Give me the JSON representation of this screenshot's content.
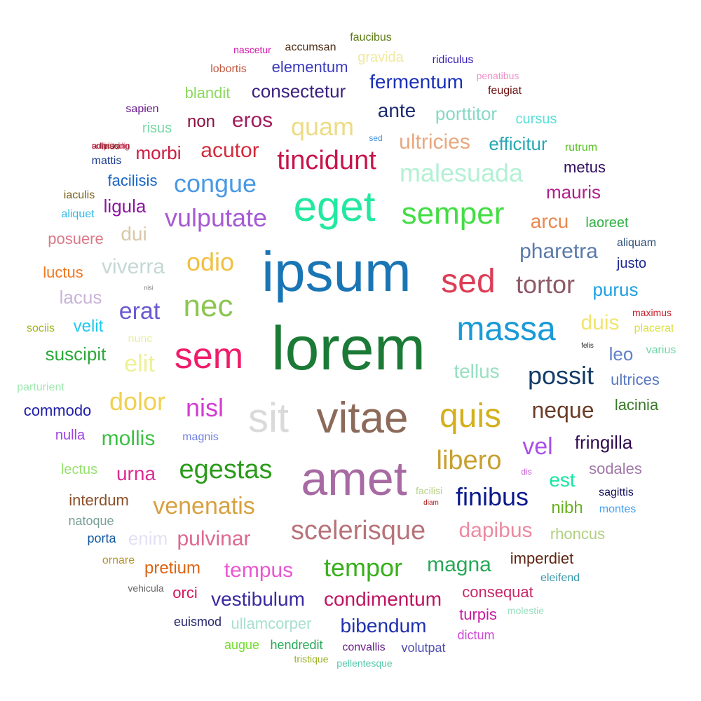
{
  "words": [
    {
      "text": "ipsum",
      "color": "#1a75b5"
    },
    {
      "text": "lorem",
      "color": "#1b7a36"
    },
    {
      "text": "amet",
      "color": "#a86aa3"
    },
    {
      "text": "vitae",
      "color": "#8c6a5a"
    },
    {
      "text": "eget",
      "color": "#22e8a0"
    },
    {
      "text": "sit",
      "color": "#dadada"
    },
    {
      "text": "sem",
      "color": "#ef1c6a"
    },
    {
      "text": "massa",
      "color": "#1a9bd6"
    },
    {
      "text": "quis",
      "color": "#d4b01c"
    },
    {
      "text": "sed",
      "color": "#dd3d55"
    },
    {
      "text": "nec",
      "color": "#8cc652"
    },
    {
      "text": "semper",
      "color": "#44dd44"
    },
    {
      "text": "scelerisque",
      "color": "#b8737a"
    },
    {
      "text": "egestas",
      "color": "#2a9a1a"
    },
    {
      "text": "libero",
      "color": "#c8a030"
    },
    {
      "text": "tincidunt",
      "color": "#c8144a"
    },
    {
      "text": "malesuada",
      "color": "#b4f0d4"
    },
    {
      "text": "congue",
      "color": "#4a9ae4"
    },
    {
      "text": "vulputate",
      "color": "#a65ad4"
    },
    {
      "text": "odio",
      "color": "#f0c040"
    },
    {
      "text": "tortor",
      "color": "#8c5a68"
    },
    {
      "text": "possit",
      "color": "#143c68"
    },
    {
      "text": "tempor",
      "color": "#38b01c"
    },
    {
      "text": "venenatis",
      "color": "#d8a040"
    },
    {
      "text": "finibus",
      "color": "#0a1a8c"
    },
    {
      "text": "neque",
      "color": "#6a3c28"
    },
    {
      "text": "dolor",
      "color": "#f0d050"
    },
    {
      "text": "nisl",
      "color": "#d23cd2"
    },
    {
      "text": "pharetra",
      "color": "#5a7aaa"
    },
    {
      "text": "pulvinar",
      "color": "#dc6a90"
    },
    {
      "text": "tempus",
      "color": "#e858d0"
    },
    {
      "text": "magna",
      "color": "#28a858"
    },
    {
      "text": "dapibus",
      "color": "#ec8aa0"
    },
    {
      "text": "condimentum",
      "color": "#c01460"
    },
    {
      "text": "vestibulum",
      "color": "#3a2aa0"
    },
    {
      "text": "bibendum",
      "color": "#2030b0"
    },
    {
      "text": "fermentum",
      "color": "#1a30b8"
    },
    {
      "text": "ante",
      "color": "#1c2c70"
    },
    {
      "text": "quam",
      "color": "#ecdc84"
    },
    {
      "text": "eros",
      "color": "#a01c5c"
    },
    {
      "text": "consectetur",
      "color": "#3a2080"
    },
    {
      "text": "acutor",
      "color": "#d22c3c"
    },
    {
      "text": "ultricies",
      "color": "#e8a880"
    },
    {
      "text": "erat",
      "color": "#6a5ad0"
    },
    {
      "text": "elit",
      "color": "#eef096"
    },
    {
      "text": "viverra",
      "color": "#c4d8d4"
    },
    {
      "text": "mollis",
      "color": "#3cc044"
    },
    {
      "text": "urna",
      "color": "#dc2c94"
    },
    {
      "text": "vel",
      "color": "#a850e8"
    },
    {
      "text": "fringilla",
      "color": "#300a50"
    },
    {
      "text": "est",
      "color": "#14e8a0"
    },
    {
      "text": "nibh",
      "color": "#6ab020"
    },
    {
      "text": "tellus",
      "color": "#98e0c0"
    },
    {
      "text": "arcu",
      "color": "#e88850"
    },
    {
      "text": "duis",
      "color": "#f0e470"
    },
    {
      "text": "purus",
      "color": "#20a0e0"
    },
    {
      "text": "leo",
      "color": "#6080c8"
    },
    {
      "text": "mauris",
      "color": "#b01c8c"
    },
    {
      "text": "porttitor",
      "color": "#88d8c4"
    },
    {
      "text": "efficitur",
      "color": "#28a8b4"
    },
    {
      "text": "morbi",
      "color": "#cc1c40"
    },
    {
      "text": "non",
      "color": "#8c1040"
    },
    {
      "text": "dui",
      "color": "#d8c8a8"
    },
    {
      "text": "ligula",
      "color": "#8c14a0"
    },
    {
      "text": "suscipit",
      "color": "#2aa838"
    },
    {
      "text": "velit",
      "color": "#20c8f0"
    },
    {
      "text": "lacus",
      "color": "#c8b4d8"
    },
    {
      "text": "enim",
      "color": "#e4e0f4"
    },
    {
      "text": "interdum",
      "color": "#8c5028"
    },
    {
      "text": "pretium",
      "color": "#dc6414"
    },
    {
      "text": "orci",
      "color": "#d4145c"
    },
    {
      "text": "ullamcorper",
      "color": "#a8e0d0"
    },
    {
      "text": "consequat",
      "color": "#c82868"
    },
    {
      "text": "turpis",
      "color": "#c81ca4"
    },
    {
      "text": "imperdiet",
      "color": "#5c2410"
    },
    {
      "text": "rhoncus",
      "color": "#b0d080"
    },
    {
      "text": "sodales",
      "color": "#a078a8"
    },
    {
      "text": "lacinia",
      "color": "#387828"
    },
    {
      "text": "ultrices",
      "color": "#5878c0"
    },
    {
      "text": "metus",
      "color": "#300c60"
    },
    {
      "text": "blandit",
      "color": "#8cd860"
    },
    {
      "text": "elementum",
      "color": "#3c3cc0"
    },
    {
      "text": "gravida",
      "color": "#f0e8a0"
    },
    {
      "text": "cursus",
      "color": "#58e0d8"
    },
    {
      "text": "facilisis",
      "color": "#1864c4"
    },
    {
      "text": "risus",
      "color": "#78d8a8"
    },
    {
      "text": "posuere",
      "color": "#dc7888"
    },
    {
      "text": "luctus",
      "color": "#f07820"
    },
    {
      "text": "commodo",
      "color": "#2020a8"
    },
    {
      "text": "nulla",
      "color": "#a040e0"
    },
    {
      "text": "lectus",
      "color": "#98e070"
    },
    {
      "text": "natoque",
      "color": "#78a098"
    },
    {
      "text": "porta",
      "color": "#1458a0"
    },
    {
      "text": "ornare",
      "color": "#b89430"
    },
    {
      "text": "euismod",
      "color": "#282870"
    },
    {
      "text": "augue",
      "color": "#70dc28"
    },
    {
      "text": "hendredit",
      "color": "#28a858"
    },
    {
      "text": "convallis",
      "color": "#681c88"
    },
    {
      "text": "volutpat",
      "color": "#5050b0"
    },
    {
      "text": "dictum",
      "color": "#d048d8"
    },
    {
      "text": "sagittis",
      "color": "#101058"
    },
    {
      "text": "montes",
      "color": "#48a0f0"
    },
    {
      "text": "aliquam",
      "color": "#305078"
    },
    {
      "text": "justo",
      "color": "#1c2894"
    },
    {
      "text": "laoreet",
      "color": "#30b044"
    },
    {
      "text": "placerat",
      "color": "#d8e040"
    },
    {
      "text": "varius",
      "color": "#70d8a8"
    },
    {
      "text": "sapien",
      "color": "#6a1a8a"
    },
    {
      "text": "mattis",
      "color": "#1c3c90"
    },
    {
      "text": "mus",
      "color": "#8c2810"
    },
    {
      "text": "iaculis",
      "color": "#786018"
    },
    {
      "text": "aliquet",
      "color": "#30b8e8"
    },
    {
      "text": "sociis",
      "color": "#a0b010"
    },
    {
      "text": "nunc",
      "color": "#e8f098"
    },
    {
      "text": "parturient",
      "color": "#a0e8b0"
    },
    {
      "text": "magnis",
      "color": "#7080e0"
    },
    {
      "text": "faucibus",
      "color": "#5c7a14"
    },
    {
      "text": "accumsan",
      "color": "#4c2c14"
    },
    {
      "text": "nascetur",
      "color": "#d010a8"
    },
    {
      "text": "ridiculus",
      "color": "#3820b8"
    },
    {
      "text": "lobortis",
      "color": "#c05840"
    },
    {
      "text": "penatibus",
      "color": "#ec90c8"
    },
    {
      "text": "feugiat",
      "color": "#6c1010"
    },
    {
      "text": "rutrum",
      "color": "#58c020"
    },
    {
      "text": "sollicitudin",
      "color": "#dc4c6c"
    },
    {
      "text": "adipiscing",
      "color": "#8c1028"
    },
    {
      "text": "maximus",
      "color": "#c81c2c"
    },
    {
      "text": "felis",
      "color": "#282828"
    },
    {
      "text": "dis",
      "color": "#c858d8"
    },
    {
      "text": "facilisi",
      "color": "#b8d088"
    },
    {
      "text": "diam",
      "color": "#a81818"
    },
    {
      "text": "eleifend",
      "color": "#3898a8"
    },
    {
      "text": "vehicula",
      "color": "#686868"
    },
    {
      "text": "molestie",
      "color": "#98e0c0"
    },
    {
      "text": "tristique",
      "color": "#9cb028"
    },
    {
      "text": "pellentesque",
      "color": "#58c8a8"
    },
    {
      "text": "nisi",
      "color": "#787878"
    },
    {
      "text": "sed",
      "color": "#4090e0"
    }
  ]
}
